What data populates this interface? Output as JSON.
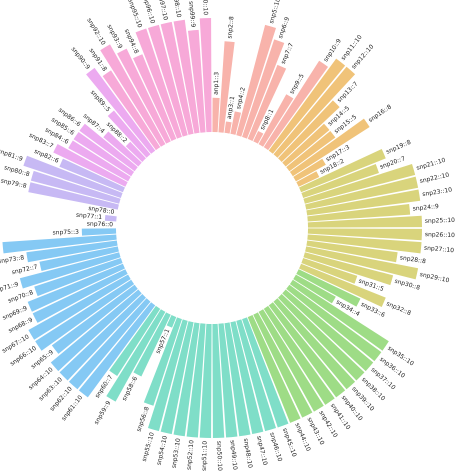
{
  "chart_data": {
    "type": "bar",
    "layout": "circular",
    "start_angle_deg": 0,
    "direction": "clockwise",
    "max_value": 10,
    "categories": [
      "anp1::3",
      "snp2::8",
      "anp3::1",
      "snp4::2",
      "snp5::10",
      "snp6::9",
      "snp7::7",
      "snp8::1",
      "snp9::5",
      "snp10::9",
      "snp11::10",
      "snp12::10",
      "snp13::7",
      "snp14::5",
      "snp15::5",
      "snp16::8",
      "snp17::3",
      "snp18::2",
      "snp19::8",
      "snp20::7",
      "snp21::10",
      "snp22::10",
      "snp23::10",
      "snp24::9",
      "snp25::10",
      "snp26::10",
      "snp27::10",
      "snp28::8",
      "snp29::10",
      "snp30::8",
      "snp31::5",
      "snp32::8",
      "snp33::6",
      "snp34::4",
      "snp35::10",
      "snp36::10",
      "snp37::10",
      "snp38::10",
      "snp39::10",
      "snp40::10",
      "snp41::10",
      "snp42::10",
      "snp43::10",
      "snp44::10",
      "snp45::10",
      "snp46::10",
      "snp47::10",
      "snp48::10",
      "snp49::10",
      "snp50::10",
      "snp51::10",
      "snp52::10",
      "snp53::10",
      "snp54::10",
      "snp55::10",
      "snp56::8",
      "snp57::1",
      "snp58::6",
      "snp59::9",
      "snp60::7",
      "snp61::10",
      "snp62::10",
      "snp63::10",
      "snp64::10",
      "snp65::9",
      "snp66::10",
      "snp67::10",
      "snp68::9",
      "snp69::9",
      "snp70::8",
      "snp71::9",
      "snp72::7",
      "snp73::8",
      "snp74::10",
      "snp75::3",
      "snp76::0",
      "snp77::1",
      "snp78::0",
      "snp79::8",
      "snp80::8",
      "snp81::9",
      "snp82::6",
      "snp83::7",
      "snp84::6",
      "snp85::6",
      "snp86::6",
      "snp87::4",
      "snp88::2",
      "snp89::5",
      "snp90::9",
      "snp91::8",
      "snp92::10",
      "snp93::9",
      "snp94::8",
      "snp95::10",
      "snp96::10",
      "snp97::10",
      "snp98::10",
      "snp99::9",
      "snp100::10"
    ],
    "values": [
      3,
      8,
      1,
      2,
      10,
      9,
      7,
      1,
      5,
      9,
      10,
      10,
      7,
      5,
      5,
      8,
      3,
      2,
      8,
      7,
      10,
      10,
      10,
      9,
      10,
      10,
      10,
      8,
      10,
      8,
      5,
      8,
      6,
      4,
      10,
      10,
      10,
      10,
      10,
      10,
      10,
      10,
      10,
      10,
      10,
      10,
      10,
      10,
      10,
      10,
      10,
      10,
      10,
      10,
      10,
      8,
      1,
      6,
      9,
      7,
      10,
      10,
      10,
      10,
      9,
      10,
      10,
      9,
      9,
      8,
      9,
      7,
      8,
      10,
      3,
      0,
      1,
      0,
      8,
      8,
      9,
      6,
      7,
      6,
      6,
      6,
      4,
      2,
      5,
      9,
      8,
      10,
      9,
      8,
      10,
      10,
      10,
      10,
      9,
      10
    ],
    "groups": [
      {
        "start": 0,
        "end": 9,
        "color": "#f8b3ab"
      },
      {
        "start": 10,
        "end": 17,
        "color": "#f0c379"
      },
      {
        "start": 18,
        "end": 31,
        "color": "#d9d47c"
      },
      {
        "start": 32,
        "end": 43,
        "color": "#9edc86"
      },
      {
        "start": 44,
        "end": 59,
        "color": "#7fdec8"
      },
      {
        "start": 60,
        "end": 74,
        "color": "#85c9f4"
      },
      {
        "start": 75,
        "end": 81,
        "color": "#c7b9f4"
      },
      {
        "start": 82,
        "end": 89,
        "color": "#ecaaf0"
      },
      {
        "start": 90,
        "end": 99,
        "color": "#f7a9d8"
      }
    ],
    "grid": false,
    "legend": "none"
  }
}
